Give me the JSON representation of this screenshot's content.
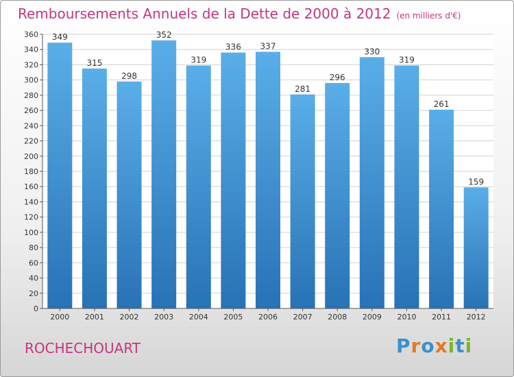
{
  "chart_data": {
    "type": "bar",
    "title": "Remboursements Annuels de la Dette de 2000 à 2012",
    "unit_note": "(en milliers d'€)",
    "categories": [
      "2000",
      "2001",
      "2002",
      "2003",
      "2004",
      "2005",
      "2006",
      "2007",
      "2008",
      "2009",
      "2010",
      "2011",
      "2012"
    ],
    "values": [
      349,
      315,
      298,
      352,
      319,
      336,
      337,
      281,
      296,
      330,
      319,
      261,
      159
    ],
    "ylim": [
      0,
      360
    ],
    "yticks": [
      0,
      20,
      40,
      60,
      80,
      100,
      120,
      140,
      160,
      180,
      200,
      220,
      240,
      260,
      280,
      300,
      320,
      340,
      360
    ],
    "grid": true,
    "xlabel": "",
    "ylabel": "",
    "colors": {
      "bar_top": "#5aaee8",
      "bar_bottom": "#2872b6",
      "title": "#c4367d"
    }
  },
  "location": "ROCHECHOUART",
  "logo": {
    "text": "Proxiti",
    "letters": [
      "P",
      "r",
      "o",
      "x",
      "i",
      "t",
      "i"
    ],
    "letter_colors": [
      "#3a8fd0",
      "#e07b20",
      "#3a8fd0",
      "#e07b20",
      "#7ab52a",
      "#3a8fd0",
      "#7ab52a"
    ]
  }
}
